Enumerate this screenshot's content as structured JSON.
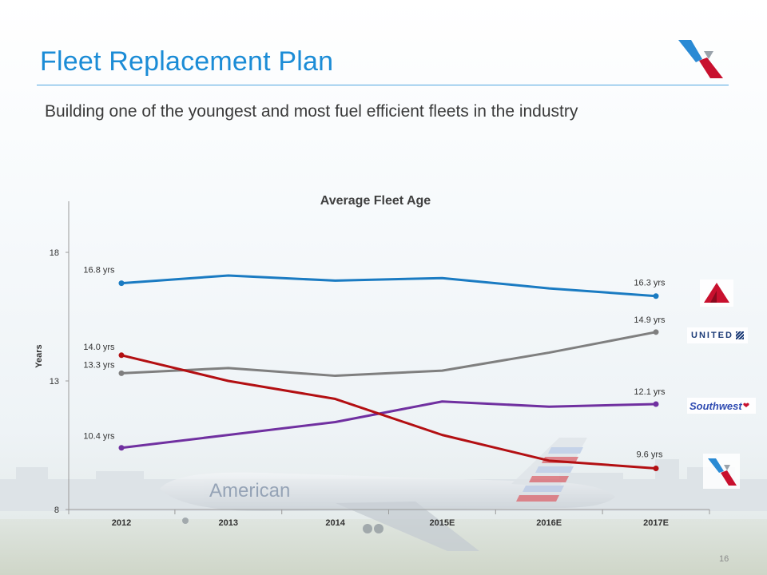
{
  "slide": {
    "title": "Fleet Replacement Plan",
    "subtitle": "Building one of the youngest and most fuel efficient fleets in the industry",
    "page_number": "16",
    "background_aircraft_text": "American"
  },
  "colors": {
    "title": "#1b8cd6",
    "delta": "#1a7bc2",
    "united": "#7f7f7f",
    "southwest": "#7030a0",
    "american": "#b30f12"
  },
  "chart_data": {
    "type": "line",
    "title": "Average Fleet Age",
    "ylabel": "Years",
    "xlabel": "",
    "categories": [
      "2012",
      "2013",
      "2014",
      "2015E",
      "2016E",
      "2017E"
    ],
    "ylim": [
      8,
      18
    ],
    "yticks": [
      "8",
      "13",
      "18"
    ],
    "grid": false,
    "series": [
      {
        "key": "delta",
        "values": [
          16.8,
          17.1,
          16.9,
          17.0,
          16.6,
          16.3
        ],
        "start_label": "16.8 yrs",
        "end_label": "16.3 yrs",
        "logo": "delta-logo"
      },
      {
        "key": "united",
        "values": [
          13.3,
          13.5,
          13.2,
          13.4,
          14.1,
          14.9
        ],
        "start_label": "13.3 yrs",
        "end_label": "14.9 yrs",
        "logo": "united-logo",
        "logo_text": "UNITED"
      },
      {
        "key": "southwest",
        "values": [
          10.4,
          10.9,
          11.4,
          12.2,
          12.0,
          12.1
        ],
        "start_label": "10.4 yrs",
        "end_label": "12.1 yrs",
        "logo": "southwest-logo",
        "logo_text": "Southwest"
      },
      {
        "key": "american",
        "values": [
          14.0,
          13.0,
          12.3,
          10.9,
          9.9,
          9.6
        ],
        "start_label": "14.0 yrs",
        "end_label": "9.6 yrs",
        "logo": "american-logo"
      }
    ]
  }
}
